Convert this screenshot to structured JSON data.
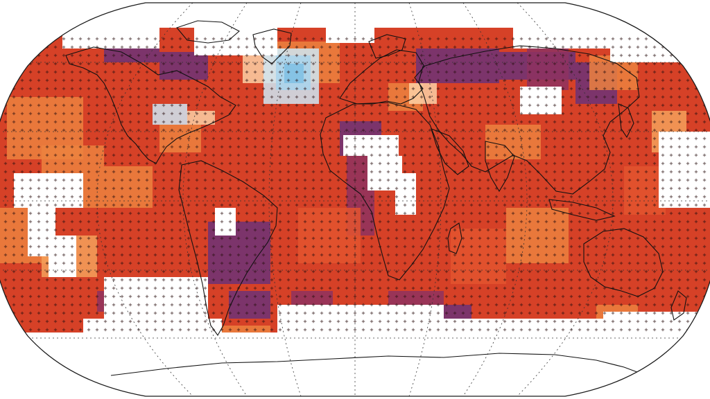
{
  "map": {
    "projection": "robinson",
    "graticule": "dotted",
    "stipple_marker": "plus",
    "background": "#ffffff",
    "outline_color": "#1a1a1a",
    "coastline_color": "#111111",
    "palette": {
      "cool_light": "#cfe8f5",
      "cool_mid": "#a8d4ec",
      "cool_strong": "#7fc0e4",
      "pale": "#fbd0a6",
      "light_orange": "#f4a15c",
      "orange": "#ec8340",
      "red_orange": "#e3552f",
      "red": "#d64127",
      "deep_red": "#b8342a",
      "purple_red": "#8e3360",
      "purple": "#6c3278",
      "no_data": "#ffffff"
    }
  }
}
